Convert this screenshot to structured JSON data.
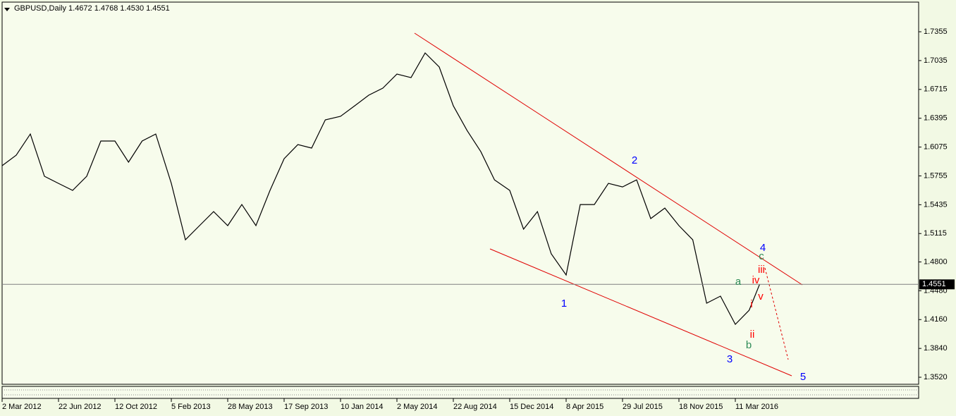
{
  "chart_data": {
    "type": "line",
    "title": "GBPUSD,Daily  1.4672 1.4768 1.4530 1.4551",
    "color": "#000000",
    "x": [
      "2012-03-02",
      "2012-03-30",
      "2012-04-27",
      "2012-05-25",
      "2012-06-22",
      "2012-07-20",
      "2012-08-17",
      "2012-09-14",
      "2012-10-12",
      "2012-11-09",
      "2012-12-07",
      "2013-01-04",
      "2013-02-05",
      "2013-03-05",
      "2013-04-02",
      "2013-04-30",
      "2013-05-28",
      "2013-06-25",
      "2013-07-23",
      "2013-08-20",
      "2013-09-17",
      "2013-10-15",
      "2013-11-12",
      "2013-12-10",
      "2014-01-10",
      "2014-02-07",
      "2014-03-07",
      "2014-04-04",
      "2014-05-02",
      "2014-05-30",
      "2014-06-27",
      "2014-07-25",
      "2014-08-22",
      "2014-09-19",
      "2014-10-17",
      "2014-11-14",
      "2014-12-15",
      "2015-01-12",
      "2015-02-09",
      "2015-03-09",
      "2015-04-08",
      "2015-05-06",
      "2015-06-03",
      "2015-07-01",
      "2015-07-29",
      "2015-08-26",
      "2015-09-23",
      "2015-10-21",
      "2015-11-18",
      "2015-12-16",
      "2016-01-13",
      "2016-02-10",
      "2016-03-11",
      "2016-04-08",
      "2016-04-29"
    ],
    "values": [
      1.5868,
      1.5985,
      1.622,
      1.5751,
      1.5672,
      1.5594,
      1.5751,
      1.6142,
      1.6142,
      1.5907,
      1.6142,
      1.622,
      1.5672,
      1.5046,
      1.5203,
      1.5359,
      1.5203,
      1.5437,
      1.5203,
      1.5594,
      1.5946,
      1.6102,
      1.6064,
      1.6377,
      1.6416,
      1.6533,
      1.6651,
      1.6729,
      1.6885,
      1.6846,
      1.712,
      1.6964,
      1.6533,
      1.6259,
      1.6024,
      1.5711,
      1.5594,
      1.5164,
      1.5359,
      1.489,
      1.4655,
      1.5437,
      1.5437,
      1.5672,
      1.5633,
      1.5711,
      1.5281,
      1.5398,
      1.5203,
      1.5046,
      1.4342,
      1.442,
      1.4107,
      1.4264,
      1.4551
    ],
    "current_price": 1.4551,
    "ylim": [
      1.3442,
      1.7684
    ],
    "yticks": [
      1.7355,
      1.7035,
      1.6715,
      1.6395,
      1.6075,
      1.5755,
      1.5435,
      1.5115,
      {
        "value": 1.48,
        "label": "1.4800"
      },
      {
        "value": 1.448,
        "label": "1.4480"
      },
      {
        "value": 1.416,
        "label": "1.4160"
      },
      {
        "value": 1.384,
        "label": "1.3840"
      },
      {
        "value": 1.352,
        "label": "1.3520"
      }
    ],
    "xticks": [
      {
        "value": "2012-03-02",
        "label": "2 Mar 2012"
      },
      {
        "value": "2012-06-22",
        "label": "22 Jun 2012"
      },
      {
        "value": "2012-10-12",
        "label": "12 Oct 2012"
      },
      {
        "value": "2013-02-05",
        "label": "5 Feb 2013"
      },
      {
        "value": "2013-05-28",
        "label": "28 May 2013"
      },
      {
        "value": "2013-09-17",
        "label": "17 Sep 2013"
      },
      {
        "value": "2014-01-10",
        "label": "10 Jan 2014"
      },
      {
        "value": "2014-05-02",
        "label": "2 May 2014"
      },
      {
        "value": "2014-08-22",
        "label": "22 Aug 2014"
      },
      {
        "value": "2014-12-15",
        "label": "15 Dec 2014"
      },
      {
        "value": "2015-04-08",
        "label": "8 Apr 2015"
      },
      {
        "value": "2015-07-29",
        "label": "29 Jul 2015"
      },
      {
        "value": "2015-11-18",
        "label": "18 Nov 2015"
      },
      {
        "value": "2016-03-11",
        "label": "11 Mar 2016"
      }
    ],
    "annotations": [
      {
        "text": "1",
        "color": "#0000ff"
      },
      {
        "text": "2",
        "color": "#0000ff"
      },
      {
        "text": "3",
        "color": "#0000ff"
      },
      {
        "text": "4",
        "color": "#0000ff"
      },
      {
        "text": "5",
        "color": "#0000ff"
      },
      {
        "text": "a",
        "color": "#2e8b57"
      },
      {
        "text": "b",
        "color": "#2e8b57"
      },
      {
        "text": "c",
        "color": "#2e8b57"
      },
      {
        "text": "i",
        "color": "#ff0000"
      },
      {
        "text": "ii",
        "color": "#ff0000"
      },
      {
        "text": "iii",
        "color": "#ff0000"
      },
      {
        "text": "iv",
        "color": "#ff0000"
      },
      {
        "text": "v",
        "color": "#ff0000"
      }
    ]
  }
}
